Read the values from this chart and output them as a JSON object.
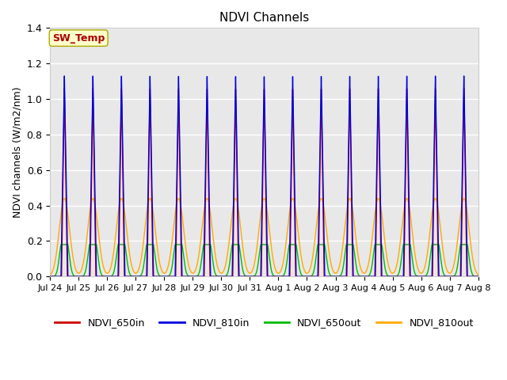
{
  "title": "NDVI Channels",
  "ylabel": "NDVI channels (W/m2/nm)",
  "ylim": [
    0.0,
    1.4
  ],
  "yticks": [
    0.0,
    0.2,
    0.4,
    0.6,
    0.8,
    1.0,
    1.2,
    1.4
  ],
  "xtick_labels": [
    "Jul 24",
    "Jul 25",
    "Jul 26",
    "Jul 27",
    "Jul 28",
    "Jul 29",
    "Jul 30",
    "Jul 31",
    "Aug 1",
    "Aug 2",
    "Aug 3",
    "Aug 4",
    "Aug 5",
    "Aug 6",
    "Aug 7",
    "Aug 8"
  ],
  "num_peaks": 15,
  "colors": {
    "NDVI_650in": "#cc0000",
    "NDVI_810in": "#0000dd",
    "NDVI_650out": "#00bb00",
    "NDVI_810out": "#ffaa00"
  },
  "peak_810in": 1.13,
  "peak_650in": 1.06,
  "peak_810out": 0.44,
  "peak_650out": 0.18,
  "annotation_text": "SW_Temp",
  "annotation_color": "#aa0000",
  "annotation_bg": "#ffffcc",
  "annotation_edge": "#aaaa00",
  "background_color": "#e8e8e8",
  "grid_color": "#ffffff",
  "fig_bg": "#ffffff"
}
